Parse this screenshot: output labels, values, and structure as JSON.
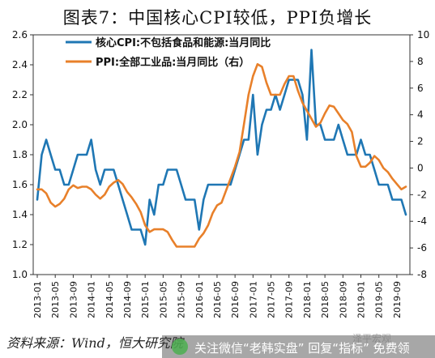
{
  "title": "图表7：中国核心CPI较低，PPI负增长",
  "source": "资料来源：Wind，恒大研究院",
  "watermark": {
    "text": "关注微信“老韩实盘” 回复“指标” 免费领",
    "corner": "泽平宏观"
  },
  "chart_data": {
    "type": "line",
    "dates": [
      "2013-01",
      "2013-05",
      "2013-09",
      "2014-01",
      "2014-05",
      "2014-09",
      "2015-01",
      "2015-05",
      "2015-09",
      "2016-01",
      "2016-05",
      "2016-09",
      "2017-01",
      "2017-05",
      "2017-09",
      "2018-01",
      "2018-05",
      "2018-09",
      "2019-01",
      "2019-05",
      "2019-09"
    ],
    "y_left": {
      "min": 1.0,
      "max": 2.6,
      "ticks": [
        "1.0",
        "1.2",
        "1.4",
        "1.6",
        "1.8",
        "2.0",
        "2.2",
        "2.4",
        "2.6"
      ]
    },
    "y_right": {
      "min": -8,
      "max": 10,
      "ticks": [
        "-8",
        "-6",
        "-4",
        "-2",
        "0",
        "2",
        "4",
        "6",
        "8",
        "10"
      ]
    },
    "legend_position": "top-left",
    "series": [
      {
        "name": "核心CPI:不包括食品和能源:当月同比",
        "axis": "left",
        "color": "#1f77b4",
        "points": [
          [
            "2013-01",
            1.5
          ],
          [
            "2013-02",
            1.8
          ],
          [
            "2013-03",
            1.9
          ],
          [
            "2013-04",
            1.8
          ],
          [
            "2013-05",
            1.7
          ],
          [
            "2013-06",
            1.7
          ],
          [
            "2013-07",
            1.6
          ],
          [
            "2013-08",
            1.6
          ],
          [
            "2013-09",
            1.7
          ],
          [
            "2013-10",
            1.8
          ],
          [
            "2013-11",
            1.8
          ],
          [
            "2013-12",
            1.8
          ],
          [
            "2014-01",
            1.9
          ],
          [
            "2014-02",
            1.7
          ],
          [
            "2014-03",
            1.6
          ],
          [
            "2014-04",
            1.7
          ],
          [
            "2014-05",
            1.7
          ],
          [
            "2014-06",
            1.7
          ],
          [
            "2014-07",
            1.6
          ],
          [
            "2014-08",
            1.5
          ],
          [
            "2014-09",
            1.4
          ],
          [
            "2014-10",
            1.3
          ],
          [
            "2014-11",
            1.3
          ],
          [
            "2014-12",
            1.3
          ],
          [
            "2015-01",
            1.2
          ],
          [
            "2015-02",
            1.5
          ],
          [
            "2015-03",
            1.4
          ],
          [
            "2015-04",
            1.6
          ],
          [
            "2015-05",
            1.6
          ],
          [
            "2015-06",
            1.7
          ],
          [
            "2015-07",
            1.7
          ],
          [
            "2015-08",
            1.7
          ],
          [
            "2015-09",
            1.6
          ],
          [
            "2015-10",
            1.5
          ],
          [
            "2015-11",
            1.5
          ],
          [
            "2015-12",
            1.5
          ],
          [
            "2016-01",
            1.3
          ],
          [
            "2016-02",
            1.5
          ],
          [
            "2016-03",
            1.6
          ],
          [
            "2016-04",
            1.6
          ],
          [
            "2016-05",
            1.6
          ],
          [
            "2016-06",
            1.6
          ],
          [
            "2016-07",
            1.6
          ],
          [
            "2016-08",
            1.6
          ],
          [
            "2016-09",
            1.7
          ],
          [
            "2016-10",
            1.8
          ],
          [
            "2016-11",
            1.9
          ],
          [
            "2016-12",
            1.9
          ],
          [
            "2017-01",
            2.2
          ],
          [
            "2017-02",
            1.8
          ],
          [
            "2017-03",
            2.0
          ],
          [
            "2017-04",
            2.1
          ],
          [
            "2017-05",
            2.1
          ],
          [
            "2017-06",
            2.2
          ],
          [
            "2017-07",
            2.1
          ],
          [
            "2017-08",
            2.2
          ],
          [
            "2017-09",
            2.3
          ],
          [
            "2017-10",
            2.3
          ],
          [
            "2017-11",
            2.3
          ],
          [
            "2017-12",
            2.2
          ],
          [
            "2018-01",
            1.9
          ],
          [
            "2018-02",
            2.5
          ],
          [
            "2018-03",
            2.0
          ],
          [
            "2018-04",
            2.0
          ],
          [
            "2018-05",
            1.9
          ],
          [
            "2018-06",
            1.9
          ],
          [
            "2018-07",
            1.9
          ],
          [
            "2018-08",
            2.0
          ],
          [
            "2018-09",
            1.9
          ],
          [
            "2018-10",
            1.8
          ],
          [
            "2018-11",
            1.8
          ],
          [
            "2018-12",
            1.8
          ],
          [
            "2019-01",
            1.9
          ],
          [
            "2019-02",
            1.8
          ],
          [
            "2019-03",
            1.8
          ],
          [
            "2019-04",
            1.7
          ],
          [
            "2019-05",
            1.6
          ],
          [
            "2019-06",
            1.6
          ],
          [
            "2019-07",
            1.6
          ],
          [
            "2019-08",
            1.5
          ],
          [
            "2019-09",
            1.5
          ],
          [
            "2019-10",
            1.5
          ],
          [
            "2019-11",
            1.4
          ]
        ]
      },
      {
        "name": "PPI:全部工业品:当月同比（右）",
        "axis": "right",
        "color": "#e8802a",
        "points": [
          [
            "2013-01",
            -1.6
          ],
          [
            "2013-02",
            -1.6
          ],
          [
            "2013-03",
            -1.9
          ],
          [
            "2013-04",
            -2.6
          ],
          [
            "2013-05",
            -2.9
          ],
          [
            "2013-06",
            -2.7
          ],
          [
            "2013-07",
            -2.3
          ],
          [
            "2013-08",
            -1.6
          ],
          [
            "2013-09",
            -1.3
          ],
          [
            "2013-10",
            -1.5
          ],
          [
            "2013-11",
            -1.4
          ],
          [
            "2013-12",
            -1.4
          ],
          [
            "2014-01",
            -1.6
          ],
          [
            "2014-02",
            -2.0
          ],
          [
            "2014-03",
            -2.3
          ],
          [
            "2014-04",
            -2.0
          ],
          [
            "2014-05",
            -1.4
          ],
          [
            "2014-06",
            -1.1
          ],
          [
            "2014-07",
            -0.9
          ],
          [
            "2014-08",
            -1.2
          ],
          [
            "2014-09",
            -1.8
          ],
          [
            "2014-10",
            -2.2
          ],
          [
            "2014-11",
            -2.7
          ],
          [
            "2014-12",
            -3.3
          ],
          [
            "2015-01",
            -4.3
          ],
          [
            "2015-02",
            -4.8
          ],
          [
            "2015-03",
            -4.6
          ],
          [
            "2015-04",
            -4.6
          ],
          [
            "2015-05",
            -4.6
          ],
          [
            "2015-06",
            -4.8
          ],
          [
            "2015-07",
            -5.4
          ],
          [
            "2015-08",
            -5.9
          ],
          [
            "2015-09",
            -5.9
          ],
          [
            "2015-10",
            -5.9
          ],
          [
            "2015-11",
            -5.9
          ],
          [
            "2015-12",
            -5.9
          ],
          [
            "2016-01",
            -5.3
          ],
          [
            "2016-02",
            -4.9
          ],
          [
            "2016-03",
            -4.3
          ],
          [
            "2016-04",
            -3.4
          ],
          [
            "2016-05",
            -2.8
          ],
          [
            "2016-06",
            -2.6
          ],
          [
            "2016-07",
            -1.7
          ],
          [
            "2016-08",
            -0.8
          ],
          [
            "2016-09",
            0.1
          ],
          [
            "2016-10",
            1.2
          ],
          [
            "2016-11",
            3.3
          ],
          [
            "2016-12",
            5.5
          ],
          [
            "2017-01",
            6.9
          ],
          [
            "2017-02",
            7.8
          ],
          [
            "2017-03",
            7.6
          ],
          [
            "2017-04",
            6.4
          ],
          [
            "2017-05",
            5.5
          ],
          [
            "2017-06",
            5.5
          ],
          [
            "2017-07",
            5.5
          ],
          [
            "2017-08",
            6.3
          ],
          [
            "2017-09",
            6.9
          ],
          [
            "2017-10",
            6.9
          ],
          [
            "2017-11",
            5.8
          ],
          [
            "2017-12",
            4.9
          ],
          [
            "2018-01",
            4.3
          ],
          [
            "2018-02",
            3.7
          ],
          [
            "2018-03",
            3.1
          ],
          [
            "2018-04",
            3.4
          ],
          [
            "2018-05",
            4.1
          ],
          [
            "2018-06",
            4.7
          ],
          [
            "2018-07",
            4.6
          ],
          [
            "2018-08",
            4.1
          ],
          [
            "2018-09",
            3.6
          ],
          [
            "2018-10",
            3.3
          ],
          [
            "2018-11",
            2.7
          ],
          [
            "2018-12",
            0.9
          ],
          [
            "2019-01",
            0.1
          ],
          [
            "2019-02",
            0.1
          ],
          [
            "2019-03",
            0.4
          ],
          [
            "2019-04",
            0.9
          ],
          [
            "2019-05",
            0.6
          ],
          [
            "2019-06",
            0.0
          ],
          [
            "2019-07",
            -0.3
          ],
          [
            "2019-08",
            -0.8
          ],
          [
            "2019-09",
            -1.2
          ],
          [
            "2019-10",
            -1.6
          ],
          [
            "2019-11",
            -1.4
          ]
        ]
      }
    ]
  }
}
